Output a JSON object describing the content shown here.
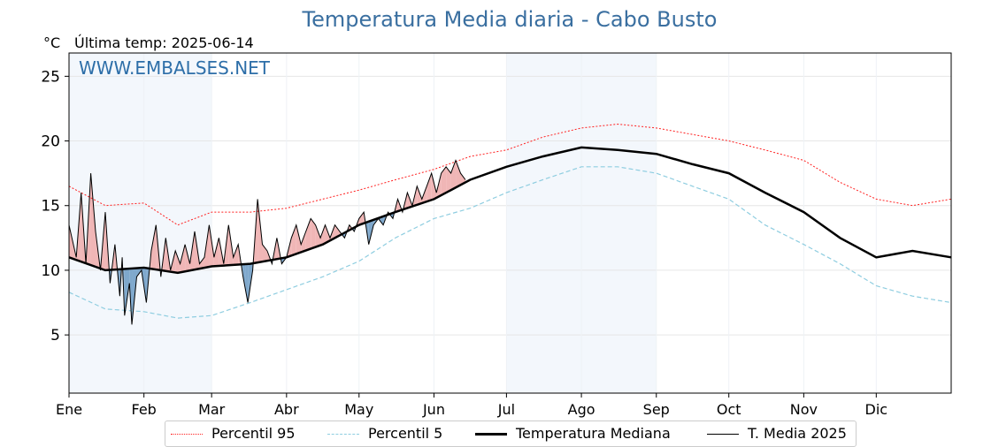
{
  "header": {
    "title": "Temperatura Media diaria - Cabo Busto",
    "unit": "°C",
    "last_temp": "Última temp: 2025-06-14",
    "watermark": "WWW.EMBALSES.NET"
  },
  "legend": [
    {
      "key": "p95",
      "label": "Percentil 95",
      "color": "#ff2020",
      "style": "dotted"
    },
    {
      "key": "p5",
      "label": "Percentil 5",
      "color": "#8ecde0",
      "style": "dashed"
    },
    {
      "key": "median",
      "label": "Temperatura Mediana",
      "color": "#000000",
      "style": "thick"
    },
    {
      "key": "y2025",
      "label": "T. Media 2025",
      "color": "#000000",
      "style": "thin"
    }
  ],
  "colors": {
    "above_fill": "#f0b6b6",
    "below_fill": "#7fa8cc",
    "below_extreme_fill": "#1f5f9e",
    "band": "#f3f7fc"
  },
  "chart_data": {
    "type": "line",
    "title": "Temperatura Media diaria - Cabo Busto",
    "ylabel": "°C",
    "ylim": [
      0.5,
      26.8
    ],
    "xlim_days": [
      0,
      365
    ],
    "yticks": [
      5,
      10,
      15,
      20,
      25
    ],
    "month_ticks": [
      {
        "label": "Ene",
        "day": 0
      },
      {
        "label": "Feb",
        "day": 31
      },
      {
        "label": "Mar",
        "day": 59
      },
      {
        "label": "Abr",
        "day": 90
      },
      {
        "label": "May",
        "day": 120
      },
      {
        "label": "Jun",
        "day": 151
      },
      {
        "label": "Jul",
        "day": 181
      },
      {
        "label": "Ago",
        "day": 212
      },
      {
        "label": "Sep",
        "day": 243
      },
      {
        "label": "Oct",
        "day": 273
      },
      {
        "label": "Nov",
        "day": 304
      },
      {
        "label": "Dic",
        "day": 334
      }
    ],
    "grid": true,
    "legend_position": "bottom",
    "series": [
      {
        "key": "p95",
        "name": "Percentil 95",
        "points": [
          [
            0,
            16.5
          ],
          [
            15,
            15.0
          ],
          [
            31,
            15.2
          ],
          [
            45,
            13.5
          ],
          [
            59,
            14.5
          ],
          [
            75,
            14.5
          ],
          [
            90,
            14.8
          ],
          [
            105,
            15.5
          ],
          [
            120,
            16.2
          ],
          [
            135,
            17.0
          ],
          [
            151,
            17.8
          ],
          [
            166,
            18.8
          ],
          [
            181,
            19.3
          ],
          [
            196,
            20.3
          ],
          [
            212,
            21.0
          ],
          [
            227,
            21.3
          ],
          [
            243,
            21.0
          ],
          [
            258,
            20.5
          ],
          [
            273,
            20.0
          ],
          [
            288,
            19.3
          ],
          [
            304,
            18.5
          ],
          [
            319,
            16.8
          ],
          [
            334,
            15.5
          ],
          [
            349,
            15.0
          ],
          [
            365,
            15.5
          ]
        ]
      },
      {
        "key": "p5",
        "name": "Percentil 5",
        "points": [
          [
            0,
            8.3
          ],
          [
            15,
            7.0
          ],
          [
            31,
            6.8
          ],
          [
            45,
            6.3
          ],
          [
            59,
            6.5
          ],
          [
            75,
            7.5
          ],
          [
            90,
            8.5
          ],
          [
            105,
            9.5
          ],
          [
            120,
            10.7
          ],
          [
            135,
            12.5
          ],
          [
            151,
            14.0
          ],
          [
            166,
            14.8
          ],
          [
            181,
            16.0
          ],
          [
            196,
            17.0
          ],
          [
            212,
            18.0
          ],
          [
            227,
            18.0
          ],
          [
            243,
            17.5
          ],
          [
            258,
            16.5
          ],
          [
            273,
            15.5
          ],
          [
            288,
            13.5
          ],
          [
            304,
            12.0
          ],
          [
            319,
            10.5
          ],
          [
            334,
            8.8
          ],
          [
            349,
            8.0
          ],
          [
            365,
            7.5
          ]
        ]
      },
      {
        "key": "median",
        "name": "Temperatura Mediana",
        "points": [
          [
            0,
            11.0
          ],
          [
            15,
            10.0
          ],
          [
            31,
            10.2
          ],
          [
            45,
            9.8
          ],
          [
            59,
            10.3
          ],
          [
            75,
            10.5
          ],
          [
            90,
            11.0
          ],
          [
            105,
            12.0
          ],
          [
            120,
            13.5
          ],
          [
            135,
            14.5
          ],
          [
            151,
            15.5
          ],
          [
            166,
            17.0
          ],
          [
            181,
            18.0
          ],
          [
            196,
            18.8
          ],
          [
            212,
            19.5
          ],
          [
            227,
            19.3
          ],
          [
            243,
            19.0
          ],
          [
            258,
            18.2
          ],
          [
            273,
            17.5
          ],
          [
            288,
            16.0
          ],
          [
            304,
            14.5
          ],
          [
            319,
            12.5
          ],
          [
            334,
            11.0
          ],
          [
            349,
            11.5
          ],
          [
            365,
            11.0
          ]
        ]
      },
      {
        "key": "y2025",
        "name": "T. Media 2025",
        "points": [
          [
            0,
            13.5
          ],
          [
            3,
            11.0
          ],
          [
            5,
            16.0
          ],
          [
            7,
            10.5
          ],
          [
            9,
            17.5
          ],
          [
            11,
            13.0
          ],
          [
            13,
            10.0
          ],
          [
            15,
            14.5
          ],
          [
            17,
            9.0
          ],
          [
            19,
            12.0
          ],
          [
            21,
            8.0
          ],
          [
            22,
            11.0
          ],
          [
            23,
            6.5
          ],
          [
            25,
            9.0
          ],
          [
            26,
            5.8
          ],
          [
            28,
            9.5
          ],
          [
            30,
            10.0
          ],
          [
            32,
            7.5
          ],
          [
            34,
            11.5
          ],
          [
            36,
            13.5
          ],
          [
            38,
            9.5
          ],
          [
            40,
            12.5
          ],
          [
            42,
            10.0
          ],
          [
            44,
            11.5
          ],
          [
            46,
            10.5
          ],
          [
            48,
            12.0
          ],
          [
            50,
            10.5
          ],
          [
            52,
            13.0
          ],
          [
            54,
            10.5
          ],
          [
            56,
            11.0
          ],
          [
            58,
            13.5
          ],
          [
            60,
            11.0
          ],
          [
            62,
            12.5
          ],
          [
            64,
            10.5
          ],
          [
            66,
            13.5
          ],
          [
            68,
            11.0
          ],
          [
            70,
            12.0
          ],
          [
            72,
            9.5
          ],
          [
            73,
            8.5
          ],
          [
            74,
            7.5
          ],
          [
            76,
            10.0
          ],
          [
            78,
            15.5
          ],
          [
            80,
            12.0
          ],
          [
            82,
            11.5
          ],
          [
            84,
            10.5
          ],
          [
            86,
            12.5
          ],
          [
            88,
            10.5
          ],
          [
            90,
            11.0
          ],
          [
            92,
            12.5
          ],
          [
            94,
            13.5
          ],
          [
            96,
            12.0
          ],
          [
            98,
            13.0
          ],
          [
            100,
            14.0
          ],
          [
            102,
            13.5
          ],
          [
            104,
            12.5
          ],
          [
            106,
            13.5
          ],
          [
            108,
            12.5
          ],
          [
            110,
            13.5
          ],
          [
            112,
            13.0
          ],
          [
            114,
            12.5
          ],
          [
            116,
            13.5
          ],
          [
            118,
            13.0
          ],
          [
            120,
            14.0
          ],
          [
            122,
            14.5
          ],
          [
            124,
            12.0
          ],
          [
            126,
            13.5
          ],
          [
            128,
            14.0
          ],
          [
            130,
            13.5
          ],
          [
            132,
            14.5
          ],
          [
            134,
            14.0
          ],
          [
            136,
            15.5
          ],
          [
            138,
            14.5
          ],
          [
            140,
            16.0
          ],
          [
            142,
            15.0
          ],
          [
            144,
            16.5
          ],
          [
            146,
            15.5
          ],
          [
            148,
            16.5
          ],
          [
            150,
            17.5
          ],
          [
            152,
            16.0
          ],
          [
            154,
            17.5
          ],
          [
            156,
            18.0
          ],
          [
            158,
            17.5
          ],
          [
            160,
            18.5
          ],
          [
            162,
            17.5
          ],
          [
            164,
            17.0
          ]
        ]
      }
    ]
  }
}
